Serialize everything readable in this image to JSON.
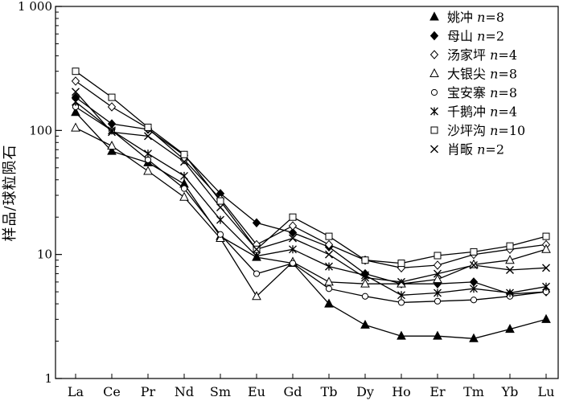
{
  "chart_data": {
    "type": "line",
    "yscale": "log",
    "ylim": [
      1,
      1000
    ],
    "ylabel": "样品/球粒陨石",
    "yticks": [
      "1",
      "10",
      "100",
      "1 000"
    ],
    "categories": [
      "La",
      "Ce",
      "Pr",
      "Nd",
      "Sm",
      "Eu",
      "Gd",
      "Tb",
      "Dy",
      "Ho",
      "Er",
      "Tm",
      "Yb",
      "Lu"
    ],
    "legend_position": "top-right",
    "grid": false,
    "series": [
      {
        "name": "姚冲",
        "n": "8",
        "marker": "triangle-filled",
        "values": [
          140,
          68,
          55,
          37,
          14,
          9.5,
          8.5,
          4.0,
          2.7,
          2.2,
          2.2,
          2.1,
          2.5,
          3.0
        ]
      },
      {
        "name": "母山",
        "n": "2",
        "marker": "diamond-filled",
        "values": [
          185,
          113,
          102,
          63,
          31,
          18,
          15,
          11.5,
          7.0,
          5.8,
          5.8,
          6.0,
          4.8,
          5.0
        ]
      },
      {
        "name": "汤家坪",
        "n": "4",
        "marker": "diamond-open",
        "values": [
          250,
          155,
          104,
          58,
          28,
          12,
          17,
          12,
          9.0,
          7.8,
          8.2,
          10,
          11,
          12
        ]
      },
      {
        "name": "大银尖",
        "n": "8",
        "marker": "triangle-open",
        "values": [
          105,
          75,
          47,
          29,
          13.5,
          4.6,
          8.7,
          6.0,
          5.8,
          5.8,
          6.3,
          8.3,
          9.0,
          11
        ]
      },
      {
        "name": "宝安寨",
        "n": "8",
        "marker": "circle-open",
        "values": [
          155,
          100,
          58,
          34,
          14.5,
          7.0,
          8.5,
          5.3,
          4.6,
          4.1,
          4.2,
          4.3,
          4.6,
          5.0
        ]
      },
      {
        "name": "千鹅冲",
        "n": "4",
        "marker": "asterisk",
        "values": [
          170,
          100,
          65,
          43,
          19,
          9.7,
          11,
          8.0,
          6.8,
          4.7,
          4.9,
          5.3,
          4.9,
          5.5
        ]
      },
      {
        "name": "沙坪沟",
        "n": "10",
        "marker": "square-open",
        "values": [
          300,
          185,
          106,
          64,
          27,
          11,
          20,
          14,
          9.0,
          8.5,
          9.8,
          10.5,
          11.7,
          14
        ]
      },
      {
        "name": "肖畈",
        "n": "2",
        "marker": "x",
        "values": [
          205,
          97,
          90,
          56,
          24,
          11,
          13.5,
          10,
          6.5,
          6.0,
          7.0,
          8.2,
          7.5,
          7.8
        ]
      }
    ]
  }
}
